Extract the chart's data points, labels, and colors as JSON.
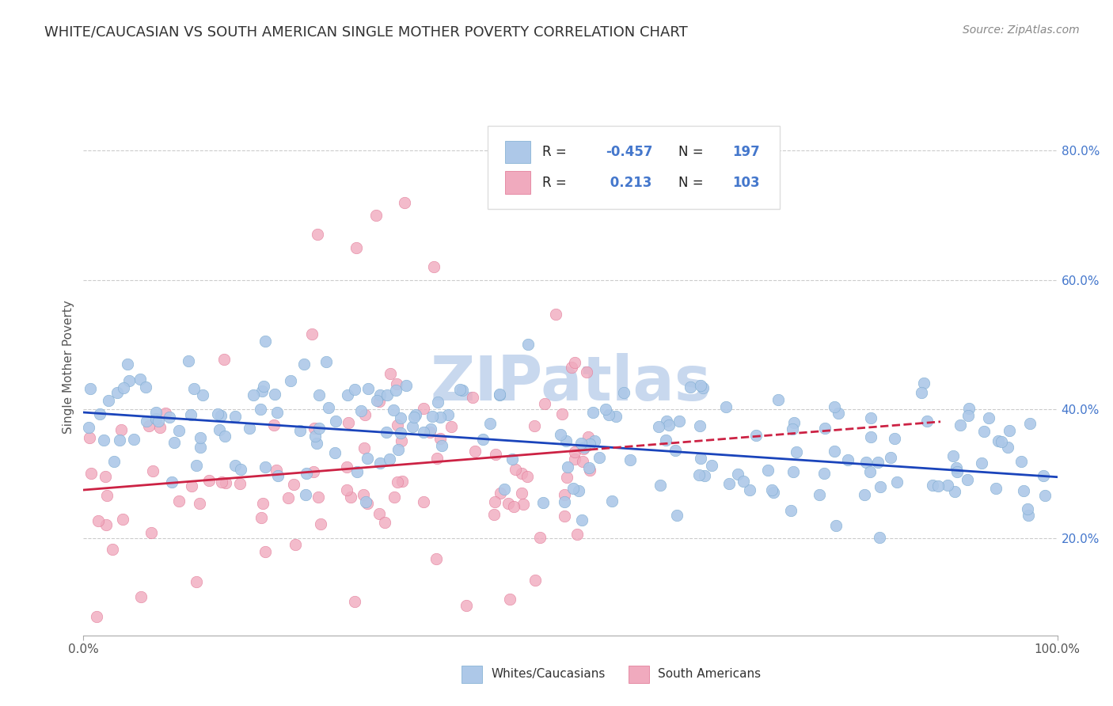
{
  "title": "WHITE/CAUCASIAN VS SOUTH AMERICAN SINGLE MOTHER POVERTY CORRELATION CHART",
  "source": "Source: ZipAtlas.com",
  "ylabel": "Single Mother Poverty",
  "right_yticks": [
    0.2,
    0.4,
    0.6,
    0.8
  ],
  "right_yticklabels": [
    "20.0%",
    "40.0%",
    "60.0%",
    "80.0%"
  ],
  "blue_R": -0.457,
  "blue_N": 197,
  "pink_R": 0.213,
  "pink_N": 103,
  "blue_color": "#adc8e8",
  "pink_color": "#f0aabe",
  "blue_edge_color": "#7aaad0",
  "pink_edge_color": "#e07090",
  "blue_line_color": "#1a44bb",
  "pink_line_color": "#cc2244",
  "bg_color": "#ffffff",
  "grid_color": "#cccccc",
  "watermark": "ZIPatlas",
  "watermark_color": "#c8d8ee",
  "legend_label_blue": "Whites/Caucasians",
  "legend_label_pink": "South Americans",
  "title_color": "#333333",
  "source_color": "#888888",
  "axis_label_color": "#555555",
  "right_tick_color": "#4477cc"
}
